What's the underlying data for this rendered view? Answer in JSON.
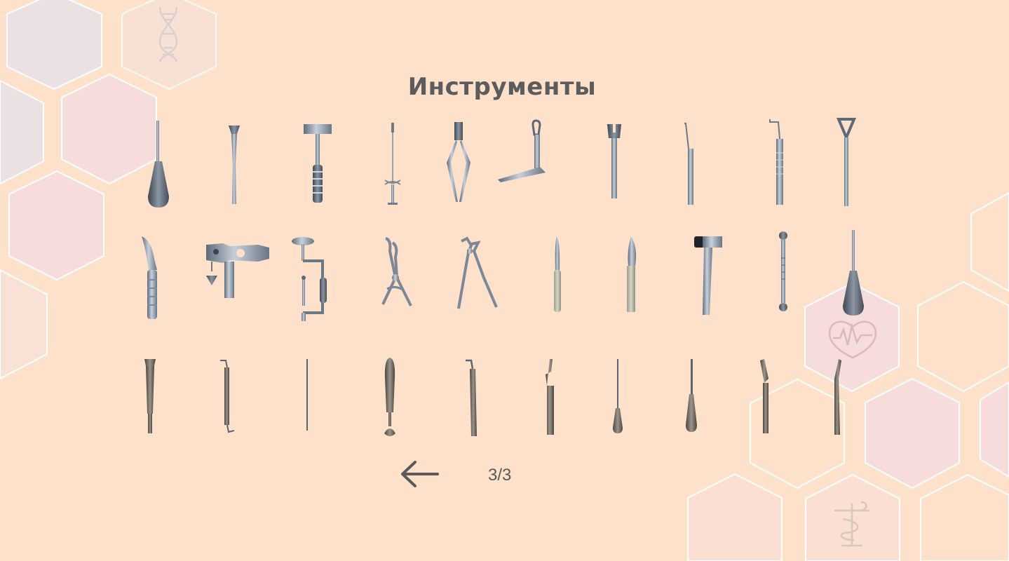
{
  "title": "Инструменты",
  "pagination": {
    "indicator": "3/3",
    "back_icon": "arrow-left-icon"
  },
  "colors": {
    "background": "#fde1cb",
    "title": "#5c5c5c",
    "metal": "#8a96a4",
    "dark_metal": "#4e5865"
  },
  "decor_icons": [
    "dna-icon",
    "heart-ecg-icon",
    "caduceus-icon"
  ],
  "tools": [
    {
      "icon": "elevator-instrument-icon"
    },
    {
      "icon": "osteotome-icon"
    },
    {
      "icon": "bone-rasp-icon"
    },
    {
      "icon": "syringe-icon"
    },
    {
      "icon": "forceps-icon"
    },
    {
      "icon": "angled-retractor-icon"
    },
    {
      "icon": "chisel-icon"
    },
    {
      "icon": "probe-icon"
    },
    {
      "icon": "curved-probe-icon"
    },
    {
      "icon": "loop-retractor-icon"
    },
    {
      "icon": "curved-elevator-icon"
    },
    {
      "icon": "mouth-gag-icon"
    },
    {
      "icon": "hand-drill-icon"
    },
    {
      "icon": "bone-forceps-icon"
    },
    {
      "icon": "extraction-forceps-icon"
    },
    {
      "icon": "knife-icon"
    },
    {
      "icon": "scalpel-icon"
    },
    {
      "icon": "surgical-hammer-icon"
    },
    {
      "icon": "spoon-curette-icon"
    },
    {
      "icon": "awl-elevator-icon"
    },
    {
      "icon": "bone-chisel-icon"
    },
    {
      "icon": "double-hook-icon"
    },
    {
      "icon": "needle-icon"
    },
    {
      "icon": "spatula-icon"
    },
    {
      "icon": "hook-probe-icon"
    },
    {
      "icon": "root-elevator-icon"
    },
    {
      "icon": "thin-awl-icon"
    },
    {
      "icon": "straight-elevator-icon"
    },
    {
      "icon": "angled-knife-icon"
    },
    {
      "icon": "periosteal-knife-icon"
    }
  ]
}
